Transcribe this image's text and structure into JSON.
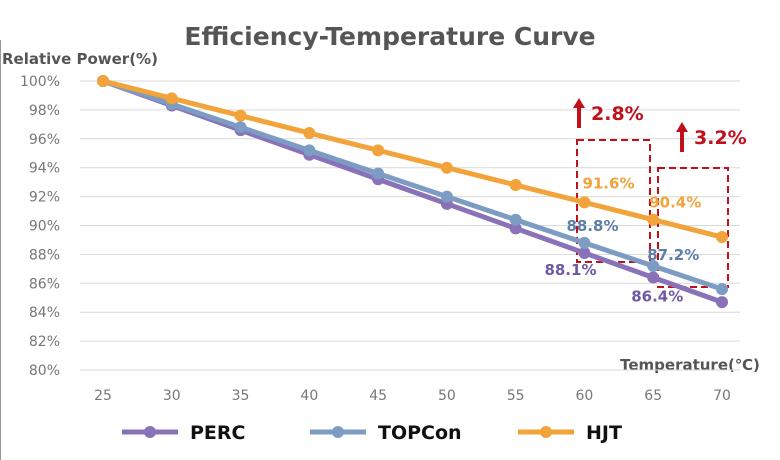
{
  "chart_data": {
    "type": "line",
    "title": "Efficiency-Temperature Curve",
    "ylabel": "Relative Power(%)",
    "xlabel": "Temperature(℃)",
    "x": [
      25,
      30,
      35,
      40,
      45,
      50,
      55,
      60,
      65,
      70
    ],
    "ylim": [
      80,
      100
    ],
    "yticks": [
      "80%",
      "82%",
      "84%",
      "86%",
      "88%",
      "90%",
      "92%",
      "94%",
      "96%",
      "98%",
      "100%"
    ],
    "grid": "horizontal",
    "legend_placement": "bottom",
    "series": [
      {
        "name": "PERC",
        "color": "#8a72b8",
        "values": [
          100,
          98.3,
          96.6,
          94.9,
          93.2,
          91.5,
          89.8,
          88.1,
          86.4,
          84.7
        ]
      },
      {
        "name": "TOPCon",
        "color": "#7d9cc4",
        "values": [
          100,
          98.4,
          96.8,
          95.2,
          93.6,
          92.0,
          90.4,
          88.8,
          87.2,
          85.6
        ]
      },
      {
        "name": "HJT",
        "color": "#f2a33a",
        "values": [
          100,
          98.8,
          97.6,
          96.4,
          95.2,
          94.0,
          92.8,
          91.6,
          90.4,
          89.2
        ]
      }
    ],
    "data_labels": [
      {
        "series": "HJT",
        "x": 60,
        "text": "91.6%",
        "color": "#f2a33a"
      },
      {
        "series": "TOPCon",
        "x": 60,
        "text": "88.8%",
        "color": "#5d7ea8"
      },
      {
        "series": "PERC",
        "x": 60,
        "text": "88.1%",
        "color": "#6f58a6"
      },
      {
        "series": "HJT",
        "x": 65,
        "text": "90.4%",
        "color": "#f2a33a"
      },
      {
        "series": "TOPCon",
        "x": 65,
        "text": "87.2%",
        "color": "#5d7ea8"
      },
      {
        "series": "PERC",
        "x": 65,
        "text": "86.4%",
        "color": "#6f58a6"
      }
    ],
    "annotations": [
      {
        "x": 60,
        "text": "2.8%",
        "color": "#c0101a"
      },
      {
        "x": 65,
        "text": "3.2%",
        "color": "#c0101a"
      }
    ]
  }
}
